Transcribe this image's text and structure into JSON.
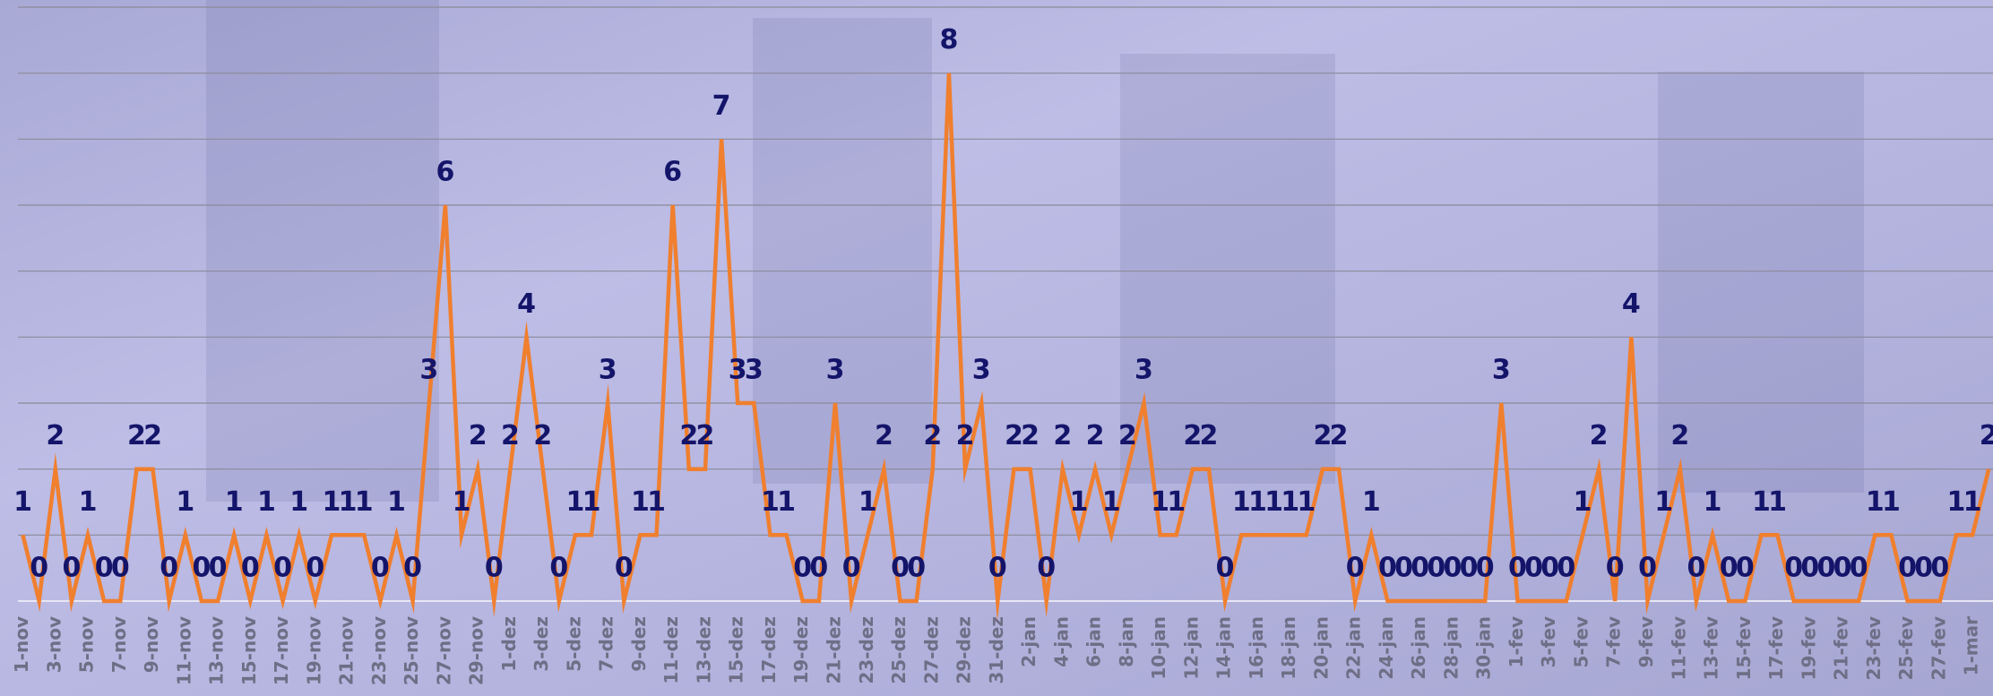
{
  "chart_data": {
    "type": "line",
    "categories": [
      "1-nov",
      null,
      "3-nov",
      null,
      "5-nov",
      null,
      "7-nov",
      null,
      "9-nov",
      null,
      "11-nov",
      null,
      "13-nov",
      null,
      "15-nov",
      null,
      "17-nov",
      null,
      "19-nov",
      null,
      "21-nov",
      null,
      "23-nov",
      null,
      "25-nov",
      null,
      "27-nov",
      null,
      "29-nov",
      null,
      "1-dez",
      null,
      "3-dez",
      null,
      "5-dez",
      null,
      "7-dez",
      null,
      "9-dez",
      null,
      "11-dez",
      null,
      "13-dez",
      null,
      "15-dez",
      null,
      "17-dez",
      null,
      "19-dez",
      null,
      "21-dez",
      null,
      "23-dez",
      null,
      "25-dez",
      null,
      "27-dez",
      null,
      "29-dez",
      null,
      "31-dez",
      null,
      "2-jan",
      null,
      "4-jan",
      null,
      "6-jan",
      null,
      "8-jan",
      null,
      "10-jan",
      null,
      "12-jan",
      null,
      "14-jan",
      null,
      "16-jan",
      null,
      "18-jan",
      null,
      "20-jan",
      null,
      "22-jan",
      null,
      "24-jan",
      null,
      "26-jan",
      null,
      "28-jan",
      null,
      "30-jan",
      null,
      "1-fev",
      null,
      "3-fev",
      null,
      "5-fev",
      null,
      "7-fev",
      null,
      "9-fev",
      null,
      "11-fev",
      null,
      "13-fev",
      null,
      "15-fev",
      null,
      "17-fev",
      null,
      "19-fev",
      null,
      "21-fev",
      null,
      "23-fev",
      null,
      "25-fev",
      null,
      "27-fev",
      null,
      "1-mar",
      null
    ],
    "values": [
      1,
      0,
      2,
      0,
      1,
      0,
      0,
      2,
      2,
      0,
      1,
      0,
      0,
      1,
      0,
      1,
      0,
      1,
      0,
      1,
      1,
      1,
      0,
      1,
      0,
      3,
      6,
      1,
      2,
      0,
      2,
      4,
      2,
      0,
      1,
      1,
      3,
      0,
      1,
      1,
      6,
      2,
      2,
      7,
      3,
      3,
      1,
      1,
      0,
      0,
      3,
      0,
      1,
      2,
      0,
      0,
      2,
      8,
      2,
      3,
      0,
      2,
      2,
      0,
      2,
      1,
      2,
      1,
      2,
      3,
      1,
      1,
      2,
      2,
      0,
      1,
      1,
      1,
      1,
      1,
      2,
      2,
      0,
      1,
      0,
      0,
      0,
      0,
      0,
      0,
      0,
      3,
      0,
      0,
      0,
      0,
      1,
      2,
      0,
      4,
      0,
      1,
      2,
      0,
      1,
      0,
      0,
      1,
      1,
      0,
      0,
      0,
      0,
      0,
      1,
      1,
      0,
      0,
      0,
      1,
      1,
      2
    ],
    "color": "#f07f2e",
    "ylim": [
      0,
      9
    ],
    "yticks": [
      0,
      1,
      2,
      3,
      4,
      5,
      6,
      7,
      8,
      9
    ],
    "grid": true
  }
}
